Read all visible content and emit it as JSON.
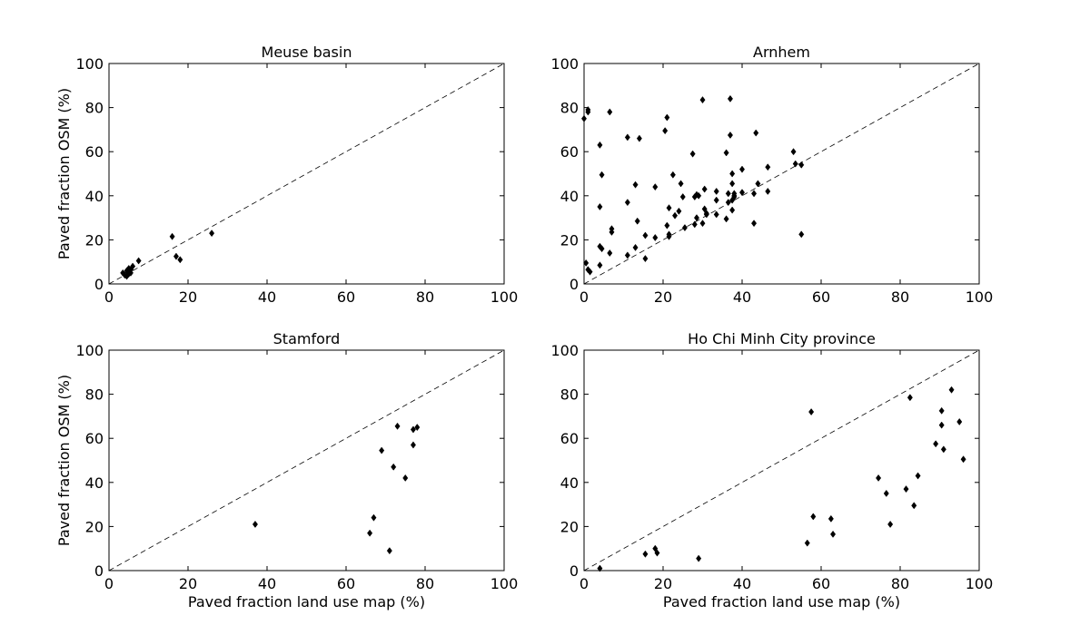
{
  "chart_data": [
    {
      "type": "scatter",
      "title": "Meuse basin",
      "xlabel": "",
      "ylabel": "Paved fraction OSM (%)",
      "xlim": [
        0,
        100
      ],
      "ylim": [
        0,
        100
      ],
      "xticks": [
        "0",
        "20",
        "40",
        "60",
        "80",
        "100"
      ],
      "yticks": [
        "0",
        "20",
        "40",
        "60",
        "80",
        "100"
      ],
      "reference_line": "y = x (dashed)",
      "marker": "diamond",
      "grid": false,
      "points": [
        [
          3.5,
          5
        ],
        [
          4,
          4
        ],
        [
          4.5,
          6
        ],
        [
          5,
          7
        ],
        [
          5.5,
          5
        ],
        [
          6,
          8
        ],
        [
          4.5,
          3.5
        ],
        [
          5,
          4.5
        ],
        [
          5.5,
          6.5
        ],
        [
          7.5,
          10.5
        ],
        [
          16,
          21.5
        ],
        [
          17,
          12.5
        ],
        [
          18,
          11
        ],
        [
          26,
          23
        ]
      ]
    },
    {
      "type": "scatter",
      "title": "Arnhem",
      "xlabel": "",
      "ylabel": "",
      "xlim": [
        0,
        100
      ],
      "ylim": [
        0,
        100
      ],
      "xticks": [
        "0",
        "20",
        "40",
        "60",
        "80",
        "100"
      ],
      "yticks": [
        "0",
        "20",
        "40",
        "60",
        "80",
        "100"
      ],
      "reference_line": "y = x (dashed)",
      "marker": "diamond",
      "grid": false,
      "points": [
        [
          0,
          75
        ],
        [
          1,
          78
        ],
        [
          1,
          79
        ],
        [
          0.5,
          9.5
        ],
        [
          1,
          6.5
        ],
        [
          1.5,
          5.5
        ],
        [
          4,
          35
        ],
        [
          4,
          63
        ],
        [
          4.5,
          49.5
        ],
        [
          4,
          17
        ],
        [
          4.5,
          16
        ],
        [
          4,
          8.5
        ],
        [
          6.5,
          78
        ],
        [
          6.5,
          14
        ],
        [
          7,
          23.5
        ],
        [
          7,
          25
        ],
        [
          11,
          66.5
        ],
        [
          11,
          37
        ],
        [
          11,
          13
        ],
        [
          13,
          45
        ],
        [
          13,
          16.5
        ],
        [
          13.5,
          28.5
        ],
        [
          14,
          66
        ],
        [
          15.5,
          22
        ],
        [
          15.5,
          11.5
        ],
        [
          18,
          44
        ],
        [
          18,
          21
        ],
        [
          20.5,
          69.5
        ],
        [
          21,
          26.5
        ],
        [
          21,
          75.5
        ],
        [
          21.5,
          22.5
        ],
        [
          21.5,
          21.5
        ],
        [
          21.5,
          34.5
        ],
        [
          22.5,
          49.5
        ],
        [
          23,
          31
        ],
        [
          24,
          33
        ],
        [
          24.5,
          45.5
        ],
        [
          25,
          39.5
        ],
        [
          25.5,
          25.5
        ],
        [
          27.5,
          59
        ],
        [
          28,
          27
        ],
        [
          28,
          39.5
        ],
        [
          28.5,
          40.5
        ],
        [
          28.5,
          30
        ],
        [
          29,
          40
        ],
        [
          30,
          83.5
        ],
        [
          30,
          27.5
        ],
        [
          30.5,
          43
        ],
        [
          30.5,
          34
        ],
        [
          31,
          31.5
        ],
        [
          31,
          32
        ],
        [
          33.5,
          42
        ],
        [
          33.5,
          31.5
        ],
        [
          33.5,
          38
        ],
        [
          36,
          29.5
        ],
        [
          36,
          59.5
        ],
        [
          36.5,
          41
        ],
        [
          36.5,
          37
        ],
        [
          37,
          67.5
        ],
        [
          37,
          84
        ],
        [
          37.5,
          33.5
        ],
        [
          37.5,
          38
        ],
        [
          37.5,
          45.5
        ],
        [
          37.5,
          50
        ],
        [
          38,
          41
        ],
        [
          38,
          39.5
        ],
        [
          38,
          40
        ],
        [
          40,
          52
        ],
        [
          40,
          41.5
        ],
        [
          43,
          41
        ],
        [
          43,
          27.5
        ],
        [
          43.5,
          68.5
        ],
        [
          44,
          45.5
        ],
        [
          46.5,
          53
        ],
        [
          46.5,
          42
        ],
        [
          53,
          60
        ],
        [
          53.5,
          54.5
        ],
        [
          55,
          54
        ],
        [
          55,
          22.5
        ]
      ]
    },
    {
      "type": "scatter",
      "title": "Stamford",
      "xlabel": "Paved fraction land use map (%)",
      "ylabel": "Paved fraction OSM (%)",
      "xlim": [
        0,
        100
      ],
      "ylim": [
        0,
        100
      ],
      "xticks": [
        "0",
        "20",
        "40",
        "60",
        "80",
        "100"
      ],
      "yticks": [
        "0",
        "20",
        "40",
        "60",
        "80",
        "100"
      ],
      "reference_line": "y = x (dashed)",
      "marker": "diamond",
      "grid": false,
      "points": [
        [
          37,
          21
        ],
        [
          66,
          17
        ],
        [
          67,
          24
        ],
        [
          69,
          54.5
        ],
        [
          71,
          9
        ],
        [
          72,
          47
        ],
        [
          73,
          65.5
        ],
        [
          75,
          42
        ],
        [
          77,
          57
        ],
        [
          77,
          64
        ],
        [
          78,
          65
        ]
      ]
    },
    {
      "type": "scatter",
      "title": "Ho Chi Minh City province",
      "xlabel": "Paved fraction land use map (%)",
      "ylabel": "",
      "xlim": [
        0,
        100
      ],
      "ylim": [
        0,
        100
      ],
      "xticks": [
        "0",
        "20",
        "40",
        "60",
        "80",
        "100"
      ],
      "yticks": [
        "0",
        "20",
        "40",
        "60",
        "80",
        "100"
      ],
      "reference_line": "y = x (dashed)",
      "marker": "diamond",
      "grid": false,
      "points": [
        [
          4,
          1
        ],
        [
          15.5,
          7.5
        ],
        [
          18,
          10
        ],
        [
          18.5,
          8
        ],
        [
          29,
          5.5
        ],
        [
          56.5,
          12.5
        ],
        [
          57.5,
          72
        ],
        [
          58,
          24.5
        ],
        [
          62.5,
          23.5
        ],
        [
          63,
          16.5
        ],
        [
          74.5,
          42
        ],
        [
          76.5,
          35
        ],
        [
          77.5,
          21
        ],
        [
          81.5,
          37
        ],
        [
          82.5,
          78.5
        ],
        [
          83.5,
          29.5
        ],
        [
          84.5,
          43
        ],
        [
          89,
          57.5
        ],
        [
          90.5,
          72.5
        ],
        [
          90.5,
          66
        ],
        [
          91,
          55
        ],
        [
          93,
          82
        ],
        [
          95,
          67.5
        ],
        [
          96,
          50.5
        ]
      ]
    }
  ]
}
